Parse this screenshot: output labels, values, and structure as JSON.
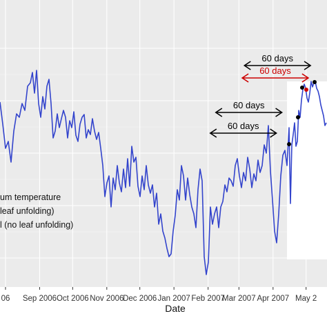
{
  "chart_data": {
    "type": "line",
    "xlabel": "Date",
    "ylabel": "",
    "title": "",
    "x_tick_labels": [
      "06",
      "Sep 2006",
      "Oct 2006",
      "Nov 2006",
      "Dec 2006",
      "Jan 2007",
      "Feb 2007",
      "Mar 2007",
      "Apr 2007",
      "May 2"
    ],
    "x_tick_dates": [
      "2006-08-01",
      "2006-09-01",
      "2006-10-01",
      "2006-11-01",
      "2006-12-01",
      "2007-01-01",
      "2007-02-01",
      "2007-03-01",
      "2007-04-01",
      "2007-05-01"
    ],
    "xlim": [
      "2006-07-27",
      "2007-05-20"
    ],
    "legend_entries": [
      "um temperature",
      "leaf unfolding)",
      "l (no leaf unfolding)"
    ],
    "grid": true,
    "annotations": [
      {
        "label": "60 days",
        "from": "2007-03-06",
        "to": "2007-05-05",
        "color": "#000000"
      },
      {
        "label": "60 days",
        "from": "2007-03-04",
        "to": "2007-05-03",
        "color": "#cc0000"
      },
      {
        "label": "60 days",
        "from": "2007-02-08",
        "to": "2007-04-09",
        "color": "#000000"
      },
      {
        "label": "60 days",
        "from": "2007-02-03",
        "to": "2007-04-04",
        "color": "#000000"
      }
    ],
    "colors": {
      "line": "#3344cc",
      "panel": "#ebebeb",
      "grid": "#ffffff",
      "red_arrow": "#cc0000",
      "points": "#000000"
    }
  }
}
